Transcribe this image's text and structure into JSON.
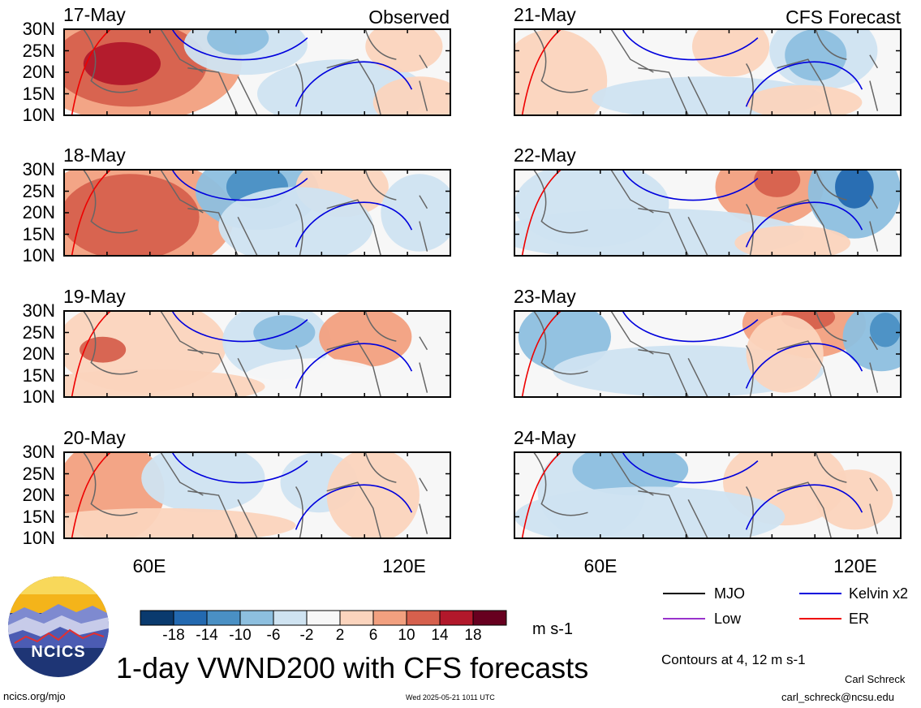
{
  "header": {
    "observed_label": "Observed",
    "forecast_label": "CFS Forecast"
  },
  "chart_data": {
    "type": "heatmap",
    "variable": "1-day VWND200",
    "units": "m s-1",
    "lat_ticks": [
      "30N",
      "25N",
      "20N",
      "15N",
      "10N"
    ],
    "lon_ticks": [
      "60E",
      "120E"
    ],
    "panels": [
      {
        "date": "17-May",
        "column": "Observed"
      },
      {
        "date": "18-May",
        "column": "Observed"
      },
      {
        "date": "19-May",
        "column": "Observed"
      },
      {
        "date": "20-May",
        "column": "Observed"
      },
      {
        "date": "21-May",
        "column": "CFS Forecast"
      },
      {
        "date": "22-May",
        "column": "CFS Forecast"
      },
      {
        "date": "23-May",
        "column": "CFS Forecast"
      },
      {
        "date": "24-May",
        "column": "CFS Forecast"
      }
    ],
    "colorbar": {
      "ticks": [
        "-18",
        "-14",
        "-10",
        "-6",
        "-2",
        "2",
        "6",
        "10",
        "14",
        "18"
      ],
      "colors": [
        "#0a3a6e",
        "#2369b0",
        "#4a90c4",
        "#8dbfdf",
        "#cfe3f1",
        "#f7f7f7",
        "#fbd4bd",
        "#f2a07f",
        "#d6604d",
        "#b2182b",
        "#67001f"
      ]
    },
    "legend": [
      {
        "label": "MJO",
        "color": "#000000"
      },
      {
        "label": "Kelvin x2",
        "color": "#0000dd"
      },
      {
        "label": "Low",
        "color": "#9933cc"
      },
      {
        "label": "ER",
        "color": "#ee0000"
      }
    ],
    "contour_note": "Contours at 4, 12 m s-1"
  },
  "footer": {
    "title": "1-day VWND200 with CFS forecasts",
    "logo_text": "NCICS",
    "url": "ncics.org/mjo",
    "timestamp": "Wed 2025-05-21 1011 UTC",
    "author": "Carl Schreck",
    "email": "carl_schreck@ncsu.edu"
  }
}
